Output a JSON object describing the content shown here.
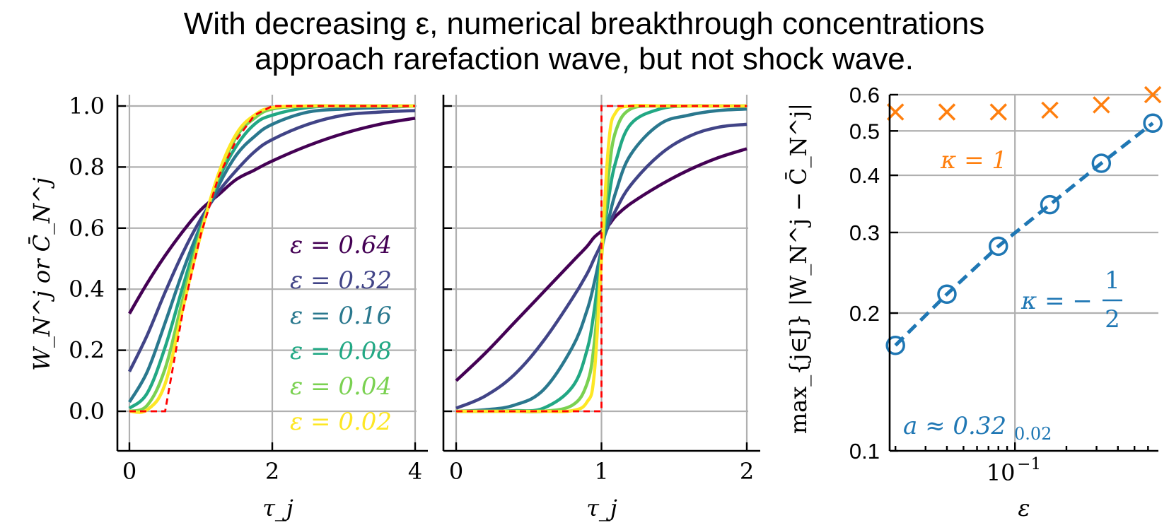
{
  "title_line1": "With decreasing ε, numerical breakthrough concentrations",
  "title_line2": "approach rarefaction wave, but not shock wave.",
  "colors": {
    "eps_0_64": "#440154",
    "eps_0_32": "#414487",
    "eps_0_16": "#2a788e",
    "eps_0_08": "#22a884",
    "eps_0_04": "#7ad151",
    "eps_0_02": "#fde725",
    "reference": "#ff0000",
    "kappa_one": "#ff7f0e",
    "kappa_half": "#1f77b4"
  },
  "chart_data": [
    {
      "type": "line",
      "panel": "rarefaction",
      "xlabel": "τ_j",
      "ylabel": "W_N^j or C̄_N^j",
      "xlim": [
        0,
        4
      ],
      "ylim": [
        0,
        1
      ],
      "xticks": [
        "0",
        "2",
        "4"
      ],
      "yticks": [
        "0.0",
        "0.2",
        "0.4",
        "0.6",
        "0.8",
        "1.0"
      ],
      "grid": true,
      "legend_position": "lower-right",
      "x": [
        0,
        0.25,
        0.5,
        0.75,
        1.0,
        1.25,
        1.5,
        1.75,
        2.0,
        2.5,
        3.0,
        3.5,
        4.0
      ],
      "series": [
        {
          "name": "ε = 0.64",
          "values": [
            0.32,
            0.42,
            0.51,
            0.59,
            0.66,
            0.71,
            0.76,
            0.79,
            0.82,
            0.87,
            0.91,
            0.94,
            0.96
          ]
        },
        {
          "name": "ε = 0.32",
          "values": [
            0.13,
            0.25,
            0.39,
            0.52,
            0.63,
            0.72,
            0.79,
            0.85,
            0.89,
            0.94,
            0.97,
            0.98,
            0.985
          ]
        },
        {
          "name": "ε = 0.16",
          "values": [
            0.03,
            0.13,
            0.29,
            0.46,
            0.61,
            0.74,
            0.84,
            0.9,
            0.94,
            0.98,
            0.99,
            0.995,
            1.0
          ]
        },
        {
          "name": "ε = 0.08",
          "values": [
            0.01,
            0.06,
            0.21,
            0.41,
            0.6,
            0.76,
            0.87,
            0.94,
            0.97,
            0.995,
            1.0,
            1.0,
            1.0
          ]
        },
        {
          "name": "ε = 0.04",
          "values": [
            0.0,
            0.02,
            0.14,
            0.37,
            0.59,
            0.77,
            0.9,
            0.96,
            0.99,
            1.0,
            1.0,
            1.0,
            1.0
          ]
        },
        {
          "name": "ε = 0.02",
          "values": [
            0.0,
            0.005,
            0.09,
            0.34,
            0.58,
            0.78,
            0.91,
            0.97,
            0.995,
            1.0,
            1.0,
            1.0,
            1.0
          ]
        }
      ],
      "reference": {
        "name": "rarefaction wave",
        "x": [
          0,
          0.5,
          0.75,
          1.0,
          1.25,
          1.5,
          1.75,
          2.0,
          4.0
        ],
        "values": [
          0,
          0,
          0.33,
          0.58,
          0.77,
          0.89,
          0.97,
          1.0,
          1.0
        ]
      }
    },
    {
      "type": "line",
      "panel": "shock",
      "xlabel": "τ_j",
      "xlim": [
        0,
        2
      ],
      "ylim": [
        0,
        1
      ],
      "xticks": [
        "0",
        "1",
        "2"
      ],
      "grid": true,
      "x": [
        0,
        0.2,
        0.4,
        0.6,
        0.8,
        0.9,
        0.95,
        1.0,
        1.05,
        1.1,
        1.2,
        1.4,
        1.6,
        1.8,
        2.0
      ],
      "series": [
        {
          "name": "ε = 0.64",
          "values": [
            0.1,
            0.19,
            0.29,
            0.39,
            0.49,
            0.54,
            0.57,
            0.59,
            0.61,
            0.64,
            0.68,
            0.74,
            0.79,
            0.83,
            0.86
          ]
        },
        {
          "name": "ε = 0.32",
          "values": [
            0.01,
            0.05,
            0.12,
            0.23,
            0.37,
            0.45,
            0.5,
            0.55,
            0.61,
            0.66,
            0.74,
            0.84,
            0.9,
            0.93,
            0.94
          ]
        },
        {
          "name": "ε = 0.16",
          "values": [
            0.0,
            0.005,
            0.02,
            0.07,
            0.21,
            0.33,
            0.42,
            0.53,
            0.63,
            0.72,
            0.84,
            0.94,
            0.97,
            0.985,
            0.99
          ]
        },
        {
          "name": "ε = 0.08",
          "values": [
            0.0,
            0.0,
            0.002,
            0.01,
            0.08,
            0.2,
            0.33,
            0.52,
            0.7,
            0.82,
            0.94,
            0.99,
            1.0,
            1.0,
            1.0
          ]
        },
        {
          "name": "ε = 0.04",
          "values": [
            0.0,
            0.0,
            0.0,
            0.0,
            0.02,
            0.09,
            0.22,
            0.5,
            0.78,
            0.92,
            0.99,
            1.0,
            1.0,
            1.0,
            1.0
          ]
        },
        {
          "name": "ε = 0.02",
          "values": [
            0.0,
            0.0,
            0.0,
            0.0,
            0.002,
            0.03,
            0.12,
            0.5,
            0.88,
            0.98,
            1.0,
            1.0,
            1.0,
            1.0,
            1.0
          ]
        }
      ],
      "reference": {
        "name": "shock wave",
        "x": [
          0,
          1,
          1,
          2
        ],
        "values": [
          0,
          0,
          1,
          1
        ]
      }
    },
    {
      "type": "line",
      "panel": "convergence",
      "xlabel": "ε",
      "ylabel": "max_{j∈J} |W_N^j − C̄_N^j|",
      "xscale": "log",
      "yscale": "log",
      "xlim": [
        0.0185,
        0.69
      ],
      "ylim": [
        0.1,
        0.6
      ],
      "xticks": [
        "10^-1"
      ],
      "yticks": [
        "0.1",
        "0.2",
        "0.3",
        "0.4",
        "0.5",
        "0.6"
      ],
      "grid": true,
      "series": [
        {
          "name": "κ = 1",
          "marker": "x",
          "x": [
            0.02,
            0.04,
            0.08,
            0.16,
            0.32,
            0.64
          ],
          "values": [
            0.55,
            0.55,
            0.55,
            0.555,
            0.57,
            0.6
          ]
        },
        {
          "name": "κ = −1/2",
          "marker": "o",
          "x": [
            0.02,
            0.04,
            0.08,
            0.16,
            0.32,
            0.64
          ],
          "values": [
            0.17,
            0.22,
            0.28,
            0.345,
            0.425,
            0.52
          ]
        }
      ],
      "annotations": [
        "κ = 1",
        "κ = −",
        "1",
        "2",
        "a ≈ 0.32",
        "0.02"
      ]
    }
  ]
}
